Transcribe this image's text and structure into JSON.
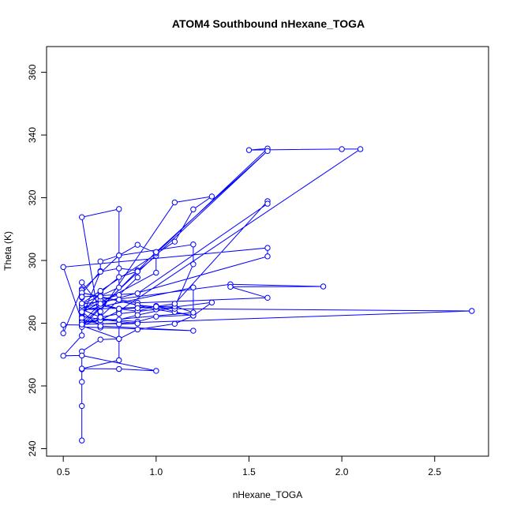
{
  "chart_data": {
    "type": "line",
    "title": "ATOM4 Southbound nHexane_TOGA",
    "xlabel": "nHexane_TOGA",
    "ylabel": "Theta (K)",
    "xlim": [
      0.41,
      2.79
    ],
    "ylim": [
      237.6,
      368.2
    ],
    "xticks": [
      0.5,
      1.0,
      1.5,
      2.0,
      2.5
    ],
    "xtick_labels": [
      "0.5",
      "1.0",
      "1.5",
      "2.0",
      "2.5"
    ],
    "yticks": [
      240,
      260,
      280,
      300,
      320,
      340,
      360
    ],
    "ytick_labels": [
      "240",
      "260",
      "280",
      "300",
      "320",
      "340",
      "360"
    ],
    "grid": false,
    "series": [
      {
        "color": "#0000ff",
        "marker": "open-circle",
        "points": [
          [
            0.6,
            242.6
          ],
          [
            0.6,
            253.6
          ],
          [
            0.6,
            261.3
          ],
          [
            0.6,
            265.3
          ],
          [
            0.6,
            269.7
          ],
          [
            0.6,
            271.0
          ],
          [
            0.7,
            274.8
          ],
          [
            0.8,
            275.0
          ],
          [
            0.6,
            279.2
          ],
          [
            0.7,
            281.4
          ],
          [
            0.9,
            280.5
          ],
          [
            1.0,
            282.1
          ],
          [
            1.2,
            282.6
          ],
          [
            1.2,
            291.4
          ],
          [
            0.6,
            284.0
          ],
          [
            0.6,
            281.0
          ],
          [
            0.7,
            279.8
          ],
          [
            0.8,
            279.8
          ],
          [
            0.8,
            268.2
          ],
          [
            0.6,
            265.5
          ],
          [
            0.8,
            265.4
          ],
          [
            1.0,
            264.8
          ],
          [
            0.6,
            269.7
          ],
          [
            0.5,
            269.6
          ],
          [
            0.6,
            276.1
          ],
          [
            0.6,
            279.4
          ],
          [
            0.5,
            279.5
          ],
          [
            0.5,
            276.8
          ],
          [
            0.6,
            290.9
          ],
          [
            0.6,
            293.0
          ],
          [
            0.7,
            285.6
          ],
          [
            0.8,
            284.6
          ],
          [
            0.9,
            283.8
          ],
          [
            1.0,
            285.5
          ],
          [
            1.1,
            283.6
          ],
          [
            1.2,
            282.4
          ],
          [
            1.1,
            279.8
          ],
          [
            0.9,
            278.0
          ],
          [
            0.8,
            275.0
          ],
          [
            0.8,
            279.7
          ],
          [
            0.9,
            279.9
          ],
          [
            0.7,
            281.2
          ],
          [
            0.6,
            282.2
          ],
          [
            0.6,
            285.5
          ],
          [
            0.6,
            288.2
          ],
          [
            0.6,
            289.4
          ],
          [
            0.7,
            296.6
          ],
          [
            0.7,
            299.7
          ],
          [
            0.8,
            301.6
          ],
          [
            1.2,
            305.1
          ],
          [
            1.2,
            298.8
          ],
          [
            1.1,
            285.1
          ],
          [
            0.9,
            282.6
          ],
          [
            0.8,
            281.1
          ],
          [
            0.6,
            280.6
          ],
          [
            0.5,
            297.9
          ],
          [
            1.6,
            304.0
          ],
          [
            1.6,
            301.3
          ],
          [
            0.6,
            284.7
          ],
          [
            0.7,
            287.4
          ],
          [
            0.8,
            289.0
          ],
          [
            0.9,
            294.6
          ],
          [
            0.9,
            296.8
          ],
          [
            0.8,
            297.5
          ],
          [
            0.7,
            296.4
          ],
          [
            0.6,
            281.7
          ],
          [
            0.6,
            283.2
          ],
          [
            0.7,
            289.8
          ],
          [
            0.8,
            294.7
          ],
          [
            0.9,
            296.5
          ],
          [
            1.0,
            301.5
          ],
          [
            1.0,
            296.1
          ],
          [
            0.6,
            283.4
          ],
          [
            0.6,
            290.5
          ],
          [
            0.8,
            301.6
          ],
          [
            0.9,
            305.0
          ],
          [
            1.0,
            302.3
          ],
          [
            1.6,
            335.7
          ],
          [
            1.5,
            335.2
          ],
          [
            2.0,
            335.5
          ],
          [
            2.1,
            335.5
          ],
          [
            0.8,
            283.9
          ],
          [
            0.7,
            281.0
          ],
          [
            0.7,
            278.6
          ],
          [
            0.6,
            313.8
          ],
          [
            0.8,
            316.4
          ],
          [
            0.8,
            291.4
          ],
          [
            0.6,
            286.1
          ],
          [
            1.4,
            292.4
          ],
          [
            1.9,
            291.7
          ],
          [
            1.4,
            291.6
          ],
          [
            1.6,
            288.1
          ],
          [
            0.9,
            286.5
          ],
          [
            0.8,
            287.5
          ],
          [
            0.7,
            282.1
          ],
          [
            0.6,
            279.6
          ],
          [
            2.7,
            283.9
          ],
          [
            1.1,
            284.6
          ],
          [
            0.9,
            285.8
          ],
          [
            0.7,
            288.5
          ],
          [
            0.6,
            289.7
          ],
          [
            1.0,
            284.4
          ],
          [
            1.2,
            282.4
          ],
          [
            1.3,
            286.6
          ],
          [
            0.8,
            283.0
          ],
          [
            0.7,
            281.9
          ],
          [
            0.6,
            284.4
          ],
          [
            1.0,
            285.2
          ],
          [
            1.1,
            285.4
          ],
          [
            1.2,
            283.4
          ],
          [
            0.6,
            280.2
          ],
          [
            0.7,
            286.2
          ],
          [
            0.8,
            284.6
          ],
          [
            0.9,
            284.8
          ],
          [
            1.0,
            285.3
          ],
          [
            1.1,
            286.2
          ],
          [
            1.6,
            318.9
          ],
          [
            1.6,
            318.1
          ],
          [
            0.9,
            289.5
          ],
          [
            0.6,
            288.4
          ],
          [
            0.6,
            285.6
          ],
          [
            0.7,
            283.7
          ],
          [
            1.1,
            318.5
          ],
          [
            1.3,
            320.4
          ],
          [
            1.2,
            316.3
          ],
          [
            1.1,
            306.0
          ],
          [
            0.7,
            290.3
          ],
          [
            0.6,
            286.3
          ],
          [
            0.6,
            283.6
          ],
          [
            0.7,
            279.1
          ],
          [
            1.2,
            277.6
          ],
          [
            0.6,
            278.8
          ],
          [
            1.0,
            302.7
          ],
          [
            1.6,
            334.9
          ],
          [
            0.6,
            279.6
          ]
        ]
      }
    ]
  }
}
